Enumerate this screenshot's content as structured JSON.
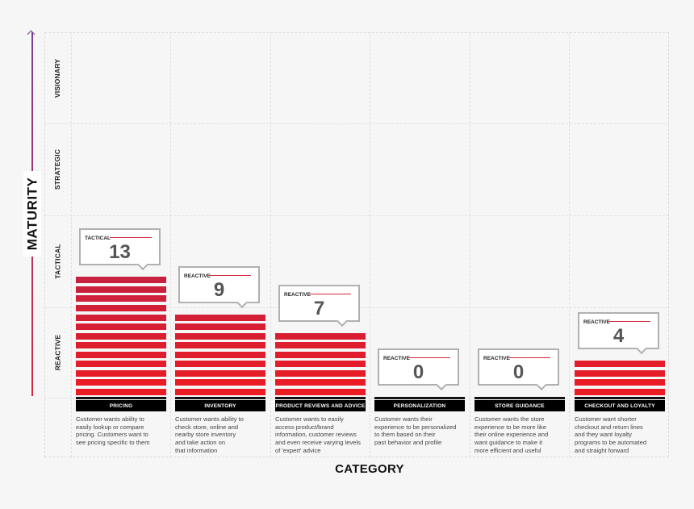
{
  "chart_data": {
    "type": "bar",
    "title": "",
    "xlabel": "CATEGORY",
    "ylabel": "MATURITY",
    "y_levels": [
      "REACTIVE",
      "TACTICAL",
      "STRATEGIC",
      "VISIONARY"
    ],
    "categories": [
      "PRICING",
      "INVENTORY",
      "PRODUCT REVIEWS AND ADVICE",
      "PERSONALIZATION",
      "STORE GUIDANCE",
      "CHECKOUT AND LOYALTY"
    ],
    "values": [
      13,
      9,
      7,
      0,
      0,
      4
    ],
    "maturity_levels": [
      "TACTICAL",
      "REACTIVE",
      "REACTIVE",
      "REACTIVE",
      "REACTIVE",
      "REACTIVE"
    ],
    "descriptions": [
      "Customer wants ability to easily lookup or compare pricing. Customers want to see pricing specific to them",
      "Customer wants ability to check store, online and nearby store inventory and take action on that information",
      "Customer wants to easily access product/brand information, customer reviews and even receive varying levels of 'expert' advice",
      "Customer wants their experience to be personalized to them based on their past behavior and profile",
      "Customer wants the store experience to be more like their online experience and want guidance to make it more efficient and useful",
      "Customer want shorter checkout and return lines and they want loyalty programs to be automated and straight forward"
    ],
    "grid": true,
    "legend": "none"
  },
  "axes": {
    "y_title": "MATURITY",
    "x_title": "CATEGORY",
    "rows": [
      {
        "label": "VISIONARY"
      },
      {
        "label": "STRATEGIC"
      },
      {
        "label": "TACTICAL"
      },
      {
        "label": "REACTIVE"
      }
    ]
  },
  "columns": [
    {
      "category": "PRICING",
      "level": "TACTICAL",
      "count": "13",
      "value": 13,
      "desc": [
        "Customer wants ability to",
        "easily lookup or compare",
        "pricing. Customers want to",
        "see pricing specific to them"
      ]
    },
    {
      "category": "INVENTORY",
      "level": "REACTIVE",
      "count": "9",
      "value": 9,
      "desc": [
        "Customer wants ability to",
        "check store, online and",
        "nearby store inventory",
        "and take action on",
        "that information"
      ]
    },
    {
      "category": "PRODUCT REVIEWS AND ADVICE",
      "level": "REACTIVE",
      "count": "7",
      "value": 7,
      "desc": [
        "Customer wants to easily",
        "access product/brand",
        "information, customer reviews",
        "and even receive varying levels",
        "of 'expert' advice"
      ]
    },
    {
      "category": "PERSONALIZATION",
      "level": "REACTIVE",
      "count": "0",
      "value": 0,
      "desc": [
        "Customer wants their",
        "experience to be personalized",
        "to them based on their",
        "past behavior and profile"
      ]
    },
    {
      "category": "STORE GUIDANCE",
      "level": "REACTIVE",
      "count": "0",
      "value": 0,
      "desc": [
        "Customer wants the store",
        "experience to be more like",
        "their online experience and",
        "want guidance to make it",
        "more efficient and useful"
      ]
    },
    {
      "category": "CHECKOUT AND LOYALTY",
      "level": "REACTIVE",
      "count": "4",
      "value": 4,
      "desc": [
        "Customer want shorter",
        "checkout and return lines",
        "and they want loyalty",
        "programs to be automated",
        "and straight forward"
      ]
    }
  ],
  "colors": {
    "stripe_top": "#c8203f",
    "stripe_bottom": "#ec1c24",
    "axis_top": "#7b3f98",
    "axis_bottom": "#d6283a",
    "label_bg": "#000000",
    "callout_border": "#b0b0b0",
    "background": "#f6f6f6"
  }
}
